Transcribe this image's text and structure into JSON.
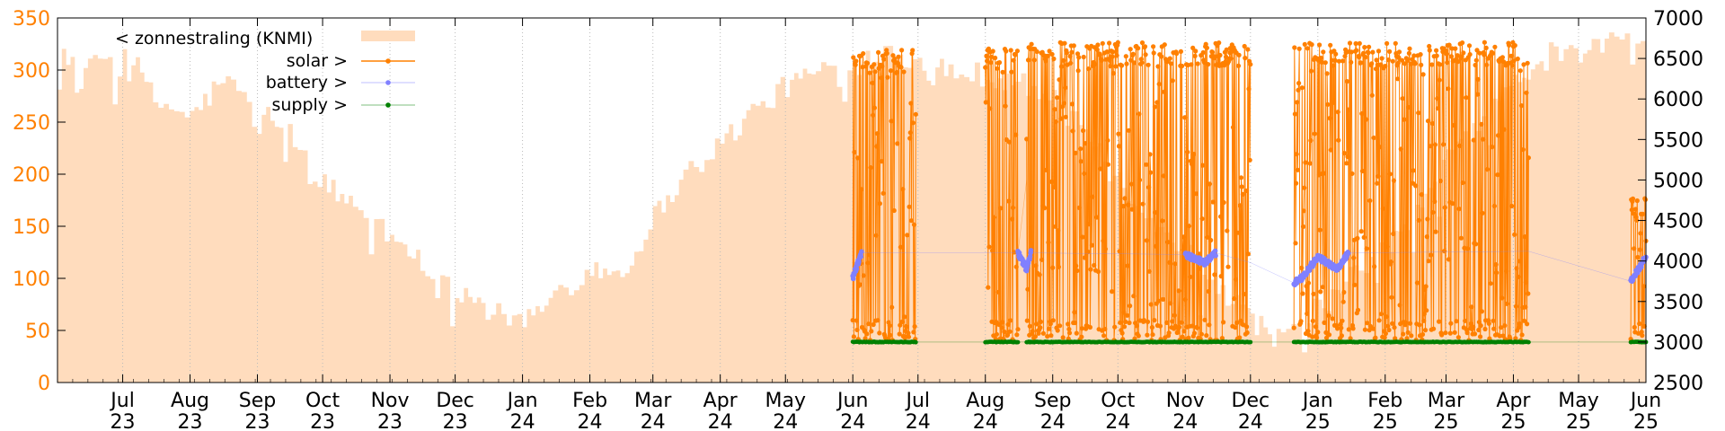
{
  "chart_data": {
    "type": "line",
    "legend": {
      "placement": "top-left",
      "entries": [
        "< zonnestraling (KNMI)",
        "solar >",
        "battery >",
        "supply >"
      ]
    },
    "colors": {
      "radiation": "#ffdcbd",
      "solar": "#ff8000",
      "battery": "#8080ff",
      "supply": "#008000",
      "left_axis": "#ff8000"
    },
    "y_left": {
      "range": [
        0,
        350
      ],
      "ticks": [
        "0",
        "50",
        "100",
        "150",
        "200",
        "250",
        "300",
        "350"
      ]
    },
    "y_right": {
      "range": [
        2500,
        7000
      ],
      "ticks": [
        "2500",
        "3000",
        "3500",
        "4000",
        "4500",
        "5000",
        "5500",
        "6000",
        "6500",
        "7000"
      ]
    },
    "x": {
      "range": [
        "2023-06-01",
        "2025-06-01"
      ],
      "ticks": [
        [
          "Jul",
          "23"
        ],
        [
          "Aug",
          "23"
        ],
        [
          "Sep",
          "23"
        ],
        [
          "Oct",
          "23"
        ],
        [
          "Nov",
          "23"
        ],
        [
          "Dec",
          "23"
        ],
        [
          "Jan",
          "24"
        ],
        [
          "Feb",
          "24"
        ],
        [
          "Mar",
          "24"
        ],
        [
          "Apr",
          "24"
        ],
        [
          "May",
          "24"
        ],
        [
          "Jun",
          "24"
        ],
        [
          "Jul",
          "24"
        ],
        [
          "Aug",
          "24"
        ],
        [
          "Sep",
          "24"
        ],
        [
          "Oct",
          "24"
        ],
        [
          "Nov",
          "24"
        ],
        [
          "Dec",
          "24"
        ],
        [
          "Jan",
          "25"
        ],
        [
          "Feb",
          "25"
        ],
        [
          "Mar",
          "25"
        ],
        [
          "Apr",
          "25"
        ],
        [
          "May",
          "25"
        ],
        [
          "Jun",
          "25"
        ]
      ],
      "grid": true
    },
    "series": [
      {
        "name": "< zonnestraling (KNMI)",
        "axis": "left",
        "style": "filled-steps",
        "points": [
          [
            "2023-06-01",
            320
          ],
          [
            "2023-06-15",
            300
          ],
          [
            "2023-07-01",
            325
          ],
          [
            "2023-07-15",
            270
          ],
          [
            "2023-08-01",
            255
          ],
          [
            "2023-08-15",
            290
          ],
          [
            "2023-09-01",
            265
          ],
          [
            "2023-09-15",
            240
          ],
          [
            "2023-10-01",
            190
          ],
          [
            "2023-10-15",
            170
          ],
          [
            "2023-11-01",
            140
          ],
          [
            "2023-11-15",
            115
          ],
          [
            "2023-12-01",
            90
          ],
          [
            "2023-12-15",
            70
          ],
          [
            "2024-01-01",
            55
          ],
          [
            "2024-01-15",
            85
          ],
          [
            "2024-02-01",
            110
          ],
          [
            "2024-02-15",
            105
          ],
          [
            "2024-03-01",
            160
          ],
          [
            "2024-03-15",
            200
          ],
          [
            "2024-04-01",
            230
          ],
          [
            "2024-04-15",
            260
          ],
          [
            "2024-05-01",
            285
          ],
          [
            "2024-05-15",
            300
          ],
          [
            "2024-06-01",
            305
          ],
          [
            "2024-06-15",
            320
          ],
          [
            "2024-07-01",
            310
          ],
          [
            "2024-07-15",
            300
          ],
          [
            "2024-08-01",
            295
          ],
          [
            "2024-08-15",
            290
          ],
          [
            "2024-09-01",
            270
          ],
          [
            "2024-09-15",
            240
          ],
          [
            "2024-10-01",
            190
          ],
          [
            "2024-10-15",
            160
          ],
          [
            "2024-11-01",
            125
          ],
          [
            "2024-11-15",
            95
          ],
          [
            "2024-12-01",
            60
          ],
          [
            "2024-12-15",
            40
          ],
          [
            "2025-01-01",
            75
          ],
          [
            "2025-01-15",
            100
          ],
          [
            "2025-02-01",
            130
          ],
          [
            "2025-02-15",
            160
          ],
          [
            "2025-03-01",
            220
          ],
          [
            "2025-03-15",
            250
          ],
          [
            "2025-04-01",
            290
          ],
          [
            "2025-04-15",
            315
          ],
          [
            "2025-05-01",
            315
          ],
          [
            "2025-05-15",
            330
          ],
          [
            "2025-06-01",
            320
          ]
        ]
      },
      {
        "name": "solar >",
        "axis": "right",
        "style": "line-points",
        "segments": [
          {
            "start": "2024-06-01",
            "end": "2024-06-30",
            "low": 3020,
            "high": 6620
          },
          {
            "start": "2024-08-01",
            "end": "2024-08-16",
            "low": 3020,
            "high": 6620
          },
          {
            "start": "2024-08-20",
            "end": "2024-12-01",
            "low": 3020,
            "high": 6700
          },
          {
            "start": "2024-12-21",
            "end": "2025-04-08",
            "low": 3020,
            "high": 6700
          },
          {
            "start": "2025-05-25",
            "end": "2025-06-01",
            "low": 3020,
            "high": 4800
          }
        ]
      },
      {
        "name": "battery >",
        "axis": "right",
        "style": "points",
        "points": [
          [
            "2024-06-01",
            3800
          ],
          [
            "2024-06-05",
            4100
          ],
          [
            "2024-06-30",
            4100
          ],
          [
            "2024-08-01",
            4100
          ],
          [
            "2024-08-16",
            4100
          ],
          [
            "2024-08-20",
            3900
          ],
          [
            "2024-08-22",
            4100
          ],
          [
            "2024-11-01",
            4080
          ],
          [
            "2024-11-10",
            3980
          ],
          [
            "2024-11-15",
            4100
          ],
          [
            "2024-12-01",
            3980
          ],
          [
            "2024-12-21",
            3730
          ],
          [
            "2024-12-25",
            3800
          ],
          [
            "2025-01-01",
            4050
          ],
          [
            "2025-01-10",
            3900
          ],
          [
            "2025-01-15",
            4100
          ],
          [
            "2025-04-08",
            4120
          ],
          [
            "2025-05-25",
            3750
          ],
          [
            "2025-06-01",
            4050
          ]
        ]
      },
      {
        "name": "supply >",
        "axis": "right",
        "style": "points",
        "points": [
          [
            "2024-06-01",
            3000
          ],
          [
            "2024-06-30",
            3000
          ],
          [
            "2024-08-01",
            3000
          ],
          [
            "2024-08-16",
            3000
          ],
          [
            "2024-08-20",
            3000
          ],
          [
            "2024-12-01",
            3000
          ],
          [
            "2024-12-21",
            3000
          ],
          [
            "2025-04-08",
            3000
          ],
          [
            "2025-05-25",
            3000
          ],
          [
            "2025-06-01",
            3000
          ]
        ]
      }
    ]
  }
}
